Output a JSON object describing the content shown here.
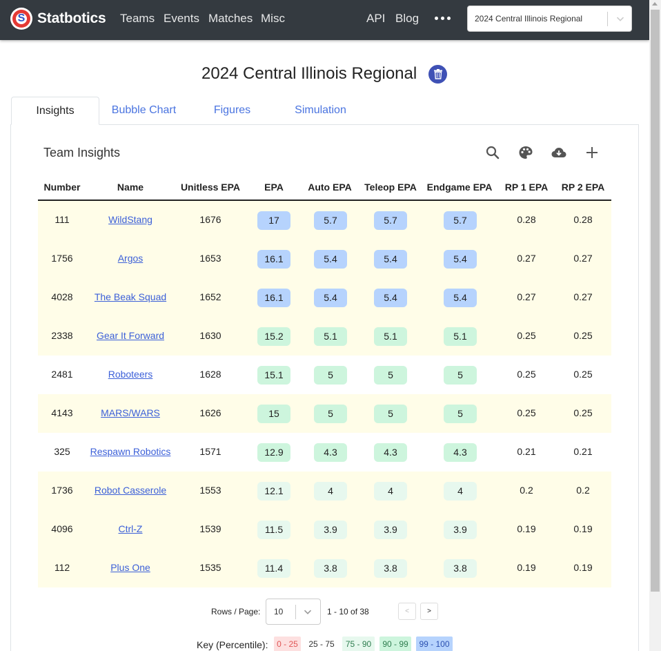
{
  "navbar": {
    "brand": "Statbotics",
    "links": [
      "Teams",
      "Events",
      "Matches",
      "Misc"
    ],
    "right_links": [
      "API",
      "Blog"
    ],
    "event_select": "2024 Central Illinois Regional"
  },
  "page": {
    "title": "2024 Central Illinois Regional"
  },
  "tabs": [
    {
      "label": "Insights",
      "active": true
    },
    {
      "label": "Bubble Chart",
      "active": false
    },
    {
      "label": "Figures",
      "active": false
    },
    {
      "label": "Simulation",
      "active": false
    }
  ],
  "insights": {
    "title": "Team Insights",
    "toolbar_icons": [
      "search-icon",
      "palette-icon",
      "cloud-download-icon",
      "plus-icon"
    ]
  },
  "table": {
    "columns": [
      "Number",
      "Name",
      "Unitless EPA",
      "EPA",
      "Auto EPA",
      "Teleop EPA",
      "Endgame EPA",
      "RP 1 EPA",
      "RP 2 EPA"
    ],
    "rows": [
      {
        "number": "111",
        "name": "WildStang",
        "unitless": "1676",
        "epa": "17",
        "auto": "5.7",
        "teleop": "5.7",
        "endgame": "5.7",
        "rp1": "0.28",
        "rp2": "0.28",
        "highlight": true,
        "bucket": "99-100"
      },
      {
        "number": "1756",
        "name": "Argos",
        "unitless": "1653",
        "epa": "16.1",
        "auto": "5.4",
        "teleop": "5.4",
        "endgame": "5.4",
        "rp1": "0.27",
        "rp2": "0.27",
        "highlight": true,
        "bucket": "99-100"
      },
      {
        "number": "4028",
        "name": "The Beak Squad",
        "unitless": "1652",
        "epa": "16.1",
        "auto": "5.4",
        "teleop": "5.4",
        "endgame": "5.4",
        "rp1": "0.27",
        "rp2": "0.27",
        "highlight": true,
        "bucket": "99-100"
      },
      {
        "number": "2338",
        "name": "Gear It Forward",
        "unitless": "1630",
        "epa": "15.2",
        "auto": "5.1",
        "teleop": "5.1",
        "endgame": "5.1",
        "rp1": "0.25",
        "rp2": "0.25",
        "highlight": true,
        "bucket": "90-99"
      },
      {
        "number": "2481",
        "name": "Roboteers",
        "unitless": "1628",
        "epa": "15.1",
        "auto": "5",
        "teleop": "5",
        "endgame": "5",
        "rp1": "0.25",
        "rp2": "0.25",
        "highlight": false,
        "bucket": "90-99"
      },
      {
        "number": "4143",
        "name": "MARS/WARS",
        "unitless": "1626",
        "epa": "15",
        "auto": "5",
        "teleop": "5",
        "endgame": "5",
        "rp1": "0.25",
        "rp2": "0.25",
        "highlight": true,
        "bucket": "90-99"
      },
      {
        "number": "325",
        "name": "Respawn Robotics",
        "unitless": "1571",
        "epa": "12.9",
        "auto": "4.3",
        "teleop": "4.3",
        "endgame": "4.3",
        "rp1": "0.21",
        "rp2": "0.21",
        "highlight": false,
        "bucket": "90-99"
      },
      {
        "number": "1736",
        "name": "Robot Casserole",
        "unitless": "1553",
        "epa": "12.1",
        "auto": "4",
        "teleop": "4",
        "endgame": "4",
        "rp1": "0.2",
        "rp2": "0.2",
        "highlight": true,
        "bucket": "75-90"
      },
      {
        "number": "4096",
        "name": "Ctrl-Z",
        "unitless": "1539",
        "epa": "11.5",
        "auto": "3.9",
        "teleop": "3.9",
        "endgame": "3.9",
        "rp1": "0.19",
        "rp2": "0.19",
        "highlight": true,
        "bucket": "75-90"
      },
      {
        "number": "112",
        "name": "Plus One",
        "unitless": "1535",
        "epa": "11.4",
        "auto": "3.8",
        "teleop": "3.8",
        "endgame": "3.8",
        "rp1": "0.19",
        "rp2": "0.19",
        "highlight": true,
        "bucket": "75-90"
      }
    ]
  },
  "pagination": {
    "rows_label": "Rows / Page:",
    "rows_value": "10",
    "range": "1 - 10 of 38",
    "prev": "<",
    "next": ">"
  },
  "key": {
    "label": "Key (Percentile):",
    "chips": [
      "0 - 25",
      "25 - 75",
      "75 - 90",
      "90 - 99",
      "99 - 100"
    ]
  },
  "colors": {
    "navbar": "#343a40",
    "link": "#3b5fd8",
    "row_highlight": "#fffde8",
    "bucket_99_100": "#b6d3fd",
    "bucket_90_99": "#cdf5dd",
    "bucket_75_90": "#e7f8ee",
    "bucket_0_25": "#fde0e0"
  }
}
